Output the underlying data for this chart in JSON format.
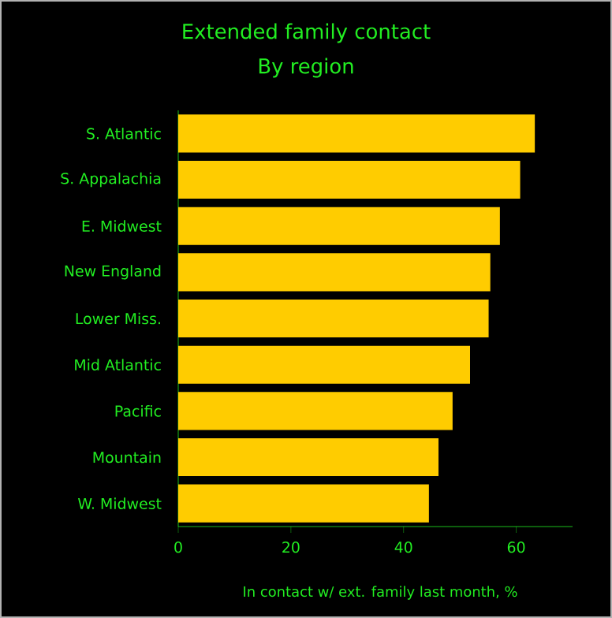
{
  "chart_data": {
    "type": "bar",
    "orientation": "horizontal",
    "title": "Extended family contact",
    "subtitle": "By region",
    "xlabel": "In contact w/ ext. family last month, %",
    "categories": [
      "S. Atlantic",
      "S. Appalachia",
      "E. Midwest",
      "New England",
      "Lower Miss.",
      "Mid Atlantic",
      "Pacific",
      "Mountain",
      "W. Midwest"
    ],
    "values": [
      63.3,
      60.7,
      57.1,
      55.4,
      55.1,
      51.8,
      48.7,
      46.2,
      44.5
    ],
    "color": "#ffcc00",
    "xlim": [
      0,
      70
    ],
    "xticks": [
      0,
      20,
      40,
      60
    ]
  }
}
